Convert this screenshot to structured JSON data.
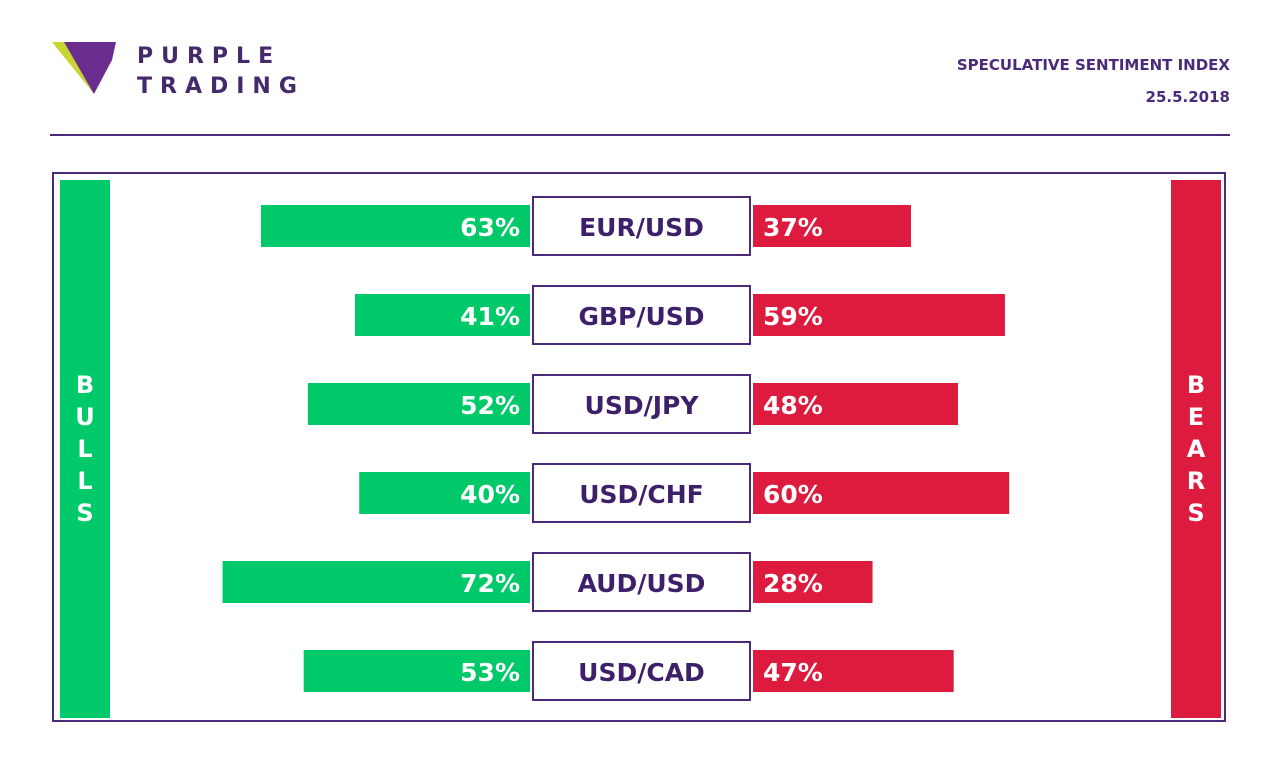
{
  "brand": {
    "line1": "PURPLE",
    "line2": "TRADING"
  },
  "header": {
    "title": "SPECULATIVE SENTIMENT INDEX",
    "date": "25.5.2018"
  },
  "side_labels": {
    "left": "BULLS",
    "right": "BEARS"
  },
  "colors": {
    "bulls": "#00c96a",
    "bears": "#dc1b3f",
    "brand": "#4b2a7a"
  },
  "chart_data": {
    "type": "bar",
    "categories": [
      "EUR/USD",
      "GBP/USD",
      "USD/JPY",
      "USD/CHF",
      "AUD/USD",
      "USD/CAD"
    ],
    "series": [
      {
        "name": "BULLS",
        "values": [
          63,
          41,
          52,
          40,
          72,
          53
        ]
      },
      {
        "name": "BEARS",
        "values": [
          37,
          59,
          48,
          60,
          28,
          47
        ]
      }
    ],
    "unit": "%",
    "grid": false
  }
}
